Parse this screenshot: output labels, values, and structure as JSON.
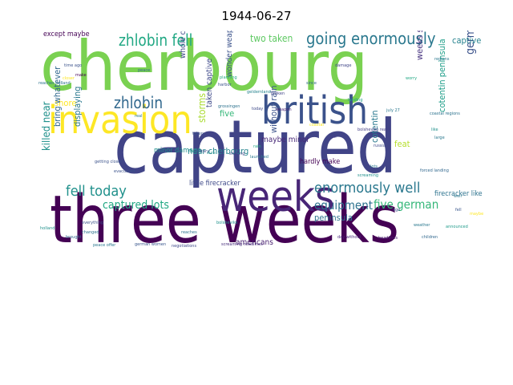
{
  "title": "1944-06-27",
  "words": [
    {
      "text": "cherbourg",
      "color": "#7ad151"
    },
    {
      "text": "captured",
      "color": "#414487"
    },
    {
      "text": "three weeks",
      "color": "#440154"
    },
    {
      "text": "invasion",
      "color": "#fde725"
    },
    {
      "text": "british",
      "color": "#3b528b"
    },
    {
      "text": "weeks",
      "color": "#482677"
    },
    {
      "text": "going enormously",
      "color": "#2a788e"
    },
    {
      "text": "zhlobin fell",
      "color": "#22a884"
    },
    {
      "text": "zhlobin",
      "color": "#31688e"
    },
    {
      "text": "enormously well",
      "color": "#2a788e"
    },
    {
      "text": "fell today",
      "color": "#21918c"
    },
    {
      "text": "captured lots",
      "color": "#22a884"
    },
    {
      "text": "five german",
      "color": "#35b779"
    },
    {
      "text": "equipment",
      "color": "#2c728e"
    },
    {
      "text": "german generals",
      "color": "#3b528b"
    },
    {
      "text": "killed near",
      "color": "#21918c"
    },
    {
      "text": "two taken",
      "color": "#5ec962"
    },
    {
      "text": "captive",
      "color": "#26828e"
    },
    {
      "text": "near cherbourg",
      "color": "#25858e"
    },
    {
      "text": "storms",
      "color": "#aadc32"
    },
    {
      "text": "five",
      "color": "#35b779"
    },
    {
      "text": "weeks since",
      "color": "#46327e"
    },
    {
      "text": "peninsula",
      "color": "#2c728e"
    },
    {
      "text": "cotentin peninsula",
      "color": "#1f9e89"
    },
    {
      "text": "whole cotentin",
      "color": "#3e4a89"
    },
    {
      "text": "wonder weapon",
      "color": "#3b528b"
    },
    {
      "text": "shore",
      "color": "#fde725"
    },
    {
      "text": "maybe minor",
      "color": "#482878"
    },
    {
      "text": "taken captive",
      "color": "#3e4989"
    },
    {
      "text": "minor damage",
      "color": "#21918c"
    },
    {
      "text": "displaying",
      "color": "#2a788e"
    },
    {
      "text": "bring whatever",
      "color": "#31688e"
    },
    {
      "text": "without rain",
      "color": "#3b528b"
    },
    {
      "text": "feat",
      "color": "#b5de2b"
    },
    {
      "text": "cotentin",
      "color": "#2a788e"
    },
    {
      "text": "hardly make",
      "color": "#440154"
    },
    {
      "text": "little firecracker",
      "color": "#3e4989"
    },
    {
      "text": "firecracker like",
      "color": "#2c728e"
    },
    {
      "text": "americans",
      "color": "#481f70"
    },
    {
      "text": "except maybe",
      "color": "#440154"
    },
    {
      "text": "getting closer",
      "color": "#3b528b"
    },
    {
      "text": "coastal regions",
      "color": "#2c728e"
    },
    {
      "text": "forced landing",
      "color": "#31688e"
    },
    {
      "text": "bolsheviks really",
      "color": "#433e85"
    },
    {
      "text": "screaming headlines",
      "color": "#472d7b"
    },
    {
      "text": "negotiations",
      "color": "#3e4989"
    },
    {
      "text": "day without",
      "color": "#482878"
    },
    {
      "text": "headlines",
      "color": "#481f70"
    },
    {
      "text": "children",
      "color": "#31688e"
    },
    {
      "text": "german women",
      "color": "#39568c"
    },
    {
      "text": "peace offer",
      "color": "#2a788e"
    },
    {
      "text": "announced",
      "color": "#1f9a8a"
    },
    {
      "text": "russia",
      "color": "#3e4989"
    },
    {
      "text": "reaches",
      "color": "#2c728e"
    },
    {
      "text": "bolsheviks",
      "color": "#21918c"
    },
    {
      "text": "military",
      "color": "#3e4a89"
    },
    {
      "text": "planning",
      "color": "#22a884"
    },
    {
      "text": "damage",
      "color": "#404688"
    },
    {
      "text": "harbor",
      "color": "#3b528b"
    },
    {
      "text": "weapon",
      "color": "#482475"
    },
    {
      "text": "grossingen",
      "color": "#2c728e"
    },
    {
      "text": "evacuated",
      "color": "#3b528b"
    },
    {
      "text": "geldernland",
      "color": "#25838e"
    },
    {
      "text": "launched",
      "color": "#2a788e"
    },
    {
      "text": "screaming",
      "color": "#21918c"
    },
    {
      "text": "maybe",
      "color": "#fde725"
    },
    {
      "text": "july 27",
      "color": "#2a788e"
    },
    {
      "text": "shaking",
      "color": "#404688"
    },
    {
      "text": "worry",
      "color": "#22a884"
    },
    {
      "text": "since",
      "color": "#31688e"
    },
    {
      "text": "ago",
      "color": "#3e4989"
    },
    {
      "text": "reaches holland",
      "color": "#2c728e"
    },
    {
      "text": "like",
      "color": "#21918c"
    },
    {
      "text": "fall",
      "color": "#433e85"
    },
    {
      "text": "fell",
      "color": "#39568c"
    },
    {
      "text": "well",
      "color": "#2a788e"
    },
    {
      "text": "closer",
      "color": "#fde725"
    },
    {
      "text": "large",
      "color": "#2a788e"
    },
    {
      "text": "holland",
      "color": "#21918c"
    },
    {
      "text": "time ago",
      "color": "#3b528b"
    },
    {
      "text": "peace",
      "color": "#31688e"
    },
    {
      "text": "regions",
      "color": "#2a788e"
    },
    {
      "text": "landing",
      "color": "#1f9e89"
    },
    {
      "text": "today",
      "color": "#3e4989"
    },
    {
      "text": "rain",
      "color": "#22a884"
    },
    {
      "text": "lots",
      "color": "#2a788e"
    },
    {
      "text": "make",
      "color": "#440154"
    },
    {
      "text": "changed",
      "color": "#2c728e"
    },
    {
      "text": "everything",
      "color": "#3b528b"
    },
    {
      "text": "brought",
      "color": "#31688e"
    },
    {
      "text": "coastal",
      "color": "#fde725"
    },
    {
      "text": "real",
      "color": "#2a788e"
    },
    {
      "text": "sure",
      "color": "#21918c"
    },
    {
      "text": "taken",
      "color": "#3b528b"
    },
    {
      "text": "weather",
      "color": "#2a788e"
    },
    {
      "text": "broken",
      "color": "#414487"
    }
  ]
}
